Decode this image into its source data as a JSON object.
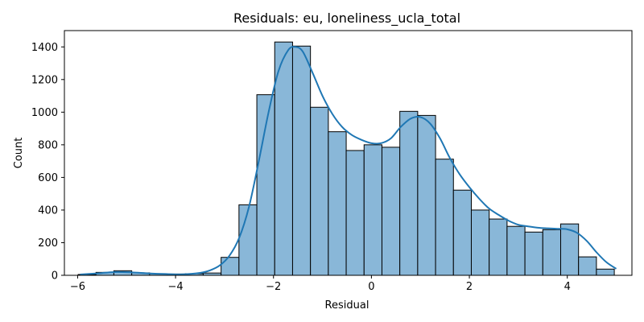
{
  "chart_data": {
    "type": "bar",
    "title": "Residuals: eu, loneliness_ucla_total",
    "xlabel": "Residual",
    "ylabel": "Count",
    "xlim": [
      -6.27,
      5.32
    ],
    "ylim": [
      0,
      1500
    ],
    "grid": false,
    "bin_edges": [
      -5.99,
      -5.625,
      -5.26,
      -4.895,
      -4.53,
      -4.165,
      -3.8,
      -3.435,
      -3.07,
      -2.705,
      -2.34,
      -1.975,
      -1.61,
      -1.245,
      -0.88,
      -0.515,
      -0.15,
      0.215,
      0.58,
      0.945,
      1.31,
      1.675,
      2.04,
      2.405,
      2.77,
      3.135,
      3.5,
      3.865,
      4.23,
      4.595,
      4.96
    ],
    "counts": [
      5,
      18,
      28,
      15,
      10,
      8,
      10,
      14,
      110,
      432,
      1107,
      1430,
      1405,
      1030,
      880,
      765,
      800,
      785,
      1005,
      980,
      712,
      522,
      400,
      345,
      300,
      265,
      280,
      315,
      113,
      38
    ],
    "kde": {
      "x": [
        -5.95,
        -5.6,
        -5.25,
        -4.9,
        -4.55,
        -4.2,
        -3.85,
        -3.5,
        -3.3,
        -3.1,
        -2.9,
        -2.7,
        -2.5,
        -2.3,
        -2.1,
        -1.9,
        -1.7,
        -1.55,
        -1.4,
        -1.2,
        -1.0,
        -0.8,
        -0.6,
        -0.4,
        -0.2,
        0.0,
        0.2,
        0.4,
        0.6,
        0.8,
        1.0,
        1.2,
        1.4,
        1.6,
        1.8,
        2.0,
        2.2,
        2.4,
        2.6,
        2.8,
        3.0,
        3.2,
        3.4,
        3.6,
        3.8,
        4.0,
        4.2,
        4.4,
        4.6,
        4.8,
        5.0
      ],
      "y": [
        5,
        12,
        20,
        18,
        12,
        8,
        6,
        15,
        30,
        60,
        120,
        230,
        420,
        700,
        1000,
        1250,
        1380,
        1400,
        1370,
        1240,
        1100,
        990,
        910,
        860,
        830,
        810,
        810,
        840,
        910,
        960,
        970,
        930,
        840,
        720,
        620,
        540,
        470,
        410,
        370,
        335,
        310,
        300,
        292,
        288,
        285,
        282,
        260,
        210,
        140,
        80,
        40
      ]
    },
    "x_ticks": [
      -6,
      -4,
      -2,
      0,
      2,
      4
    ],
    "x_tick_labels": [
      "−6",
      "−4",
      "−2",
      "0",
      "2",
      "4"
    ],
    "y_ticks": [
      0,
      200,
      400,
      600,
      800,
      1000,
      1200,
      1400
    ],
    "y_tick_labels": [
      "0",
      "200",
      "400",
      "600",
      "800",
      "1000",
      "1200",
      "1400"
    ],
    "colors": {
      "bar_fill": "#89b7d8",
      "bar_edge": "#000000",
      "kde_line": "#1f77b4"
    }
  }
}
